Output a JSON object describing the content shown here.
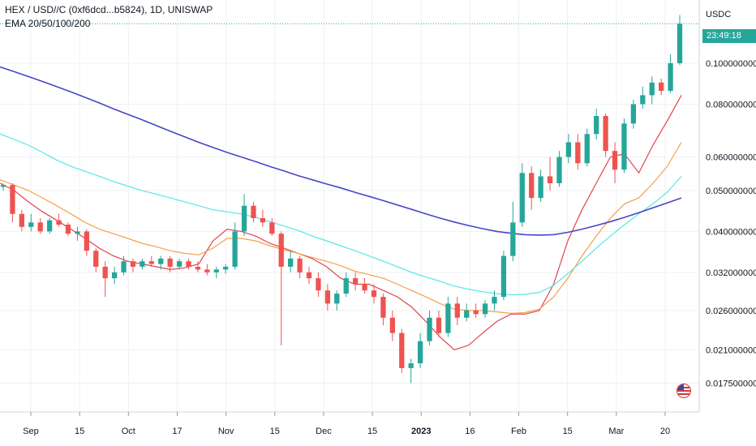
{
  "header": {
    "symbol_line": "HEX / USD//C (0xf6dcd...b5824), 1D, UNISWAP",
    "indicator_line": "EMA 20/50/100/200"
  },
  "price_axis": {
    "currency": "USDC",
    "countdown": "23:49:18"
  },
  "colors": {
    "up": "#26a69a",
    "down": "#ef5350",
    "ema20": "#e0434f",
    "ema50": "#f5a04a",
    "ema100": "#55e6e6",
    "ema200": "#4646c8",
    "grid": "#eef0f3"
  },
  "chart_data": {
    "type": "candlestick",
    "y_scale": "log",
    "y_ticks": [
      "0.1000000000",
      "0.0800000000",
      "0.0600000000",
      "0.0500000000",
      "0.0400000000",
      "0.0320000000",
      "0.0260000000",
      "0.0210000000",
      "0.0175000000"
    ],
    "x_ticks": [
      "Sep",
      "15",
      "Oct",
      "17",
      "Nov",
      "15",
      "Dec",
      "15",
      "2023",
      "16",
      "Feb",
      "15",
      "Mar",
      "20"
    ],
    "ylim": [
      0.0155,
      0.135
    ],
    "last_price": 0.124,
    "grid": true,
    "series": [
      {
        "name": "EMA 20",
        "color": "ema20",
        "values": [
          0.052,
          0.05,
          0.047,
          0.0445,
          0.0425,
          0.0405,
          0.0385,
          0.0365,
          0.035,
          0.034,
          0.0335,
          0.033,
          0.0325,
          0.0328,
          0.0335,
          0.038,
          0.0405,
          0.04,
          0.039,
          0.0375,
          0.0365,
          0.0355,
          0.0345,
          0.033,
          0.031,
          0.03,
          0.03,
          0.029,
          0.028,
          0.0265,
          0.0245,
          0.0225,
          0.021,
          0.0215,
          0.023,
          0.0245,
          0.0255,
          0.0255,
          0.026,
          0.03,
          0.038,
          0.045,
          0.052,
          0.06,
          0.061,
          0.055,
          0.064,
          0.073,
          0.084
        ]
      },
      {
        "name": "EMA 50",
        "color": "ema50",
        "values": [
          0.053,
          0.0515,
          0.05,
          0.048,
          0.046,
          0.044,
          0.042,
          0.0405,
          0.0395,
          0.0385,
          0.0375,
          0.0368,
          0.036,
          0.0355,
          0.0352,
          0.0365,
          0.0385,
          0.0385,
          0.038,
          0.037,
          0.0362,
          0.0355,
          0.0347,
          0.034,
          0.0332,
          0.0322,
          0.0316,
          0.031,
          0.03,
          0.029,
          0.028,
          0.027,
          0.0262,
          0.026,
          0.026,
          0.0258,
          0.0256,
          0.0257,
          0.0262,
          0.028,
          0.031,
          0.035,
          0.039,
          0.043,
          0.0465,
          0.048,
          0.052,
          0.057,
          0.065
        ]
      },
      {
        "name": "EMA 100",
        "color": "ema100",
        "values": [
          0.068,
          0.066,
          0.064,
          0.0615,
          0.059,
          0.057,
          0.0555,
          0.054,
          0.0525,
          0.0512,
          0.05,
          0.049,
          0.048,
          0.047,
          0.046,
          0.045,
          0.0445,
          0.044,
          0.0432,
          0.0422,
          0.0412,
          0.0402,
          0.039,
          0.038,
          0.037,
          0.036,
          0.035,
          0.034,
          0.033,
          0.032,
          0.0312,
          0.0305,
          0.0297,
          0.0292,
          0.0288,
          0.0285,
          0.0283,
          0.0284,
          0.0287,
          0.0298,
          0.0318,
          0.034,
          0.0365,
          0.039,
          0.0415,
          0.044,
          0.0465,
          0.0495,
          0.054
        ]
      },
      {
        "name": "EMA 200",
        "color": "ema200",
        "values": [
          0.098,
          0.0955,
          0.093,
          0.0905,
          0.088,
          0.0855,
          0.083,
          0.0805,
          0.078,
          0.0757,
          0.0735,
          0.0712,
          0.069,
          0.067,
          0.065,
          0.0632,
          0.0615,
          0.06,
          0.0585,
          0.057,
          0.0556,
          0.0542,
          0.053,
          0.0518,
          0.0507,
          0.0495,
          0.0484,
          0.0473,
          0.0462,
          0.0451,
          0.044,
          0.043,
          0.0421,
          0.0413,
          0.0406,
          0.04,
          0.0396,
          0.0393,
          0.0392,
          0.0393,
          0.0398,
          0.0405,
          0.0413,
          0.0422,
          0.0432,
          0.0443,
          0.0455,
          0.0467,
          0.048
        ]
      }
    ],
    "candles": [
      [
        0.051,
        0.052,
        0.05,
        0.0515
      ],
      [
        0.0515,
        0.052,
        0.042,
        0.044
      ],
      [
        0.044,
        0.045,
        0.04,
        0.041
      ],
      [
        0.041,
        0.044,
        0.04,
        0.042
      ],
      [
        0.042,
        0.043,
        0.0395,
        0.04
      ],
      [
        0.04,
        0.043,
        0.0395,
        0.0425
      ],
      [
        0.0425,
        0.044,
        0.041,
        0.0415
      ],
      [
        0.0415,
        0.042,
        0.039,
        0.0395
      ],
      [
        0.0395,
        0.041,
        0.038,
        0.04
      ],
      [
        0.04,
        0.0405,
        0.035,
        0.036
      ],
      [
        0.036,
        0.0365,
        0.032,
        0.033
      ],
      [
        0.033,
        0.034,
        0.028,
        0.031
      ],
      [
        0.031,
        0.033,
        0.03,
        0.032
      ],
      [
        0.032,
        0.035,
        0.0315,
        0.034
      ],
      [
        0.034,
        0.0345,
        0.032,
        0.033
      ],
      [
        0.033,
        0.0345,
        0.0325,
        0.034
      ],
      [
        0.034,
        0.035,
        0.033,
        0.0335
      ],
      [
        0.0335,
        0.035,
        0.0325,
        0.0345
      ],
      [
        0.0345,
        0.035,
        0.032,
        0.033
      ],
      [
        0.033,
        0.0345,
        0.0325,
        0.034
      ],
      [
        0.034,
        0.0345,
        0.0325,
        0.033
      ],
      [
        0.033,
        0.034,
        0.032,
        0.0325
      ],
      [
        0.0325,
        0.0335,
        0.0315,
        0.032
      ],
      [
        0.032,
        0.033,
        0.031,
        0.0325
      ],
      [
        0.0325,
        0.0335,
        0.0318,
        0.033
      ],
      [
        0.033,
        0.042,
        0.0325,
        0.04
      ],
      [
        0.04,
        0.049,
        0.039,
        0.046
      ],
      [
        0.046,
        0.047,
        0.042,
        0.043
      ],
      [
        0.043,
        0.045,
        0.041,
        0.042
      ],
      [
        0.042,
        0.043,
        0.039,
        0.0395
      ],
      [
        0.0395,
        0.04,
        0.0215,
        0.033
      ],
      [
        0.033,
        0.036,
        0.032,
        0.0345
      ],
      [
        0.0345,
        0.035,
        0.031,
        0.032
      ],
      [
        0.032,
        0.033,
        0.03,
        0.031
      ],
      [
        0.031,
        0.032,
        0.028,
        0.029
      ],
      [
        0.029,
        0.03,
        0.026,
        0.027
      ],
      [
        0.027,
        0.029,
        0.026,
        0.0285
      ],
      [
        0.0285,
        0.032,
        0.028,
        0.031
      ],
      [
        0.031,
        0.032,
        0.029,
        0.03
      ],
      [
        0.03,
        0.031,
        0.0285,
        0.029
      ],
      [
        0.029,
        0.03,
        0.027,
        0.028
      ],
      [
        0.028,
        0.0285,
        0.024,
        0.025
      ],
      [
        0.025,
        0.026,
        0.022,
        0.023
      ],
      [
        0.023,
        0.0235,
        0.0185,
        0.019
      ],
      [
        0.019,
        0.02,
        0.0175,
        0.0195
      ],
      [
        0.0195,
        0.023,
        0.019,
        0.022
      ],
      [
        0.022,
        0.026,
        0.0215,
        0.025
      ],
      [
        0.025,
        0.026,
        0.0225,
        0.023
      ],
      [
        0.023,
        0.028,
        0.0225,
        0.027
      ],
      [
        0.027,
        0.028,
        0.024,
        0.025
      ],
      [
        0.025,
        0.027,
        0.0245,
        0.026
      ],
      [
        0.026,
        0.027,
        0.025,
        0.0255
      ],
      [
        0.0255,
        0.0275,
        0.025,
        0.027
      ],
      [
        0.027,
        0.029,
        0.026,
        0.028
      ],
      [
        0.028,
        0.036,
        0.0275,
        0.035
      ],
      [
        0.035,
        0.047,
        0.034,
        0.042
      ],
      [
        0.042,
        0.058,
        0.041,
        0.055
      ],
      [
        0.055,
        0.057,
        0.045,
        0.048
      ],
      [
        0.048,
        0.056,
        0.047,
        0.054
      ],
      [
        0.054,
        0.06,
        0.05,
        0.052
      ],
      [
        0.052,
        0.062,
        0.051,
        0.06
      ],
      [
        0.06,
        0.068,
        0.058,
        0.065
      ],
      [
        0.065,
        0.068,
        0.056,
        0.058
      ],
      [
        0.058,
        0.07,
        0.057,
        0.068
      ],
      [
        0.068,
        0.078,
        0.066,
        0.075
      ],
      [
        0.075,
        0.076,
        0.06,
        0.062
      ],
      [
        0.062,
        0.065,
        0.052,
        0.056
      ],
      [
        0.056,
        0.074,
        0.055,
        0.072
      ],
      [
        0.072,
        0.082,
        0.07,
        0.08
      ],
      [
        0.08,
        0.088,
        0.078,
        0.084
      ],
      [
        0.084,
        0.093,
        0.08,
        0.09
      ],
      [
        0.09,
        0.092,
        0.084,
        0.086
      ],
      [
        0.086,
        0.105,
        0.085,
        0.1
      ],
      [
        0.1,
        0.13,
        0.099,
        0.124
      ]
    ]
  }
}
